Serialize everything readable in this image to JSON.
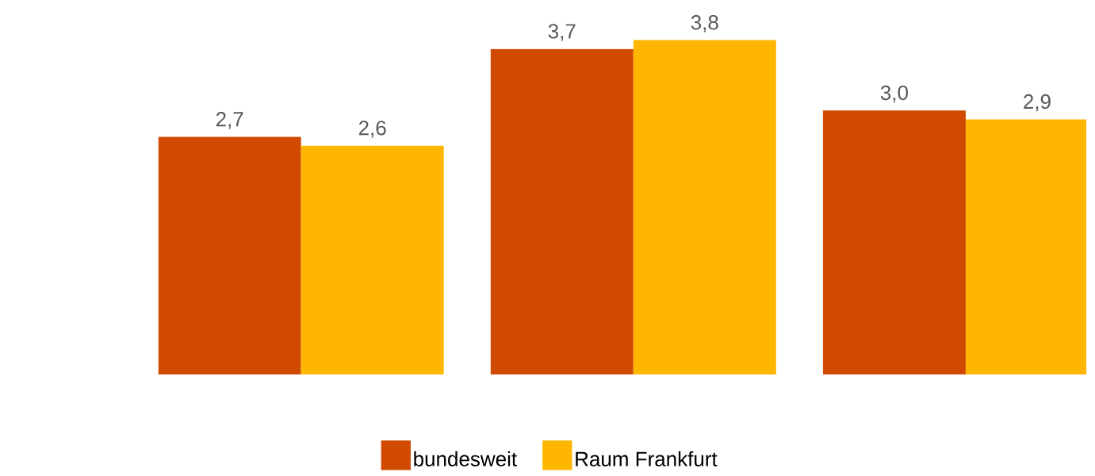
{
  "chart_data": {
    "type": "bar",
    "categories": [
      null,
      null,
      null
    ],
    "series": [
      {
        "name": "bundesweit",
        "color": "#d04a02",
        "values": [
          2.7,
          3.7,
          3.0
        ],
        "value_labels": [
          "2,7",
          "3,7",
          "3,0"
        ]
      },
      {
        "name": "Raum Frankfurt",
        "color": "#ffb600",
        "values": [
          2.6,
          3.8,
          2.9
        ],
        "value_labels": [
          "2,6",
          "3,8",
          "2,9"
        ]
      }
    ],
    "legend": "bottom"
  }
}
